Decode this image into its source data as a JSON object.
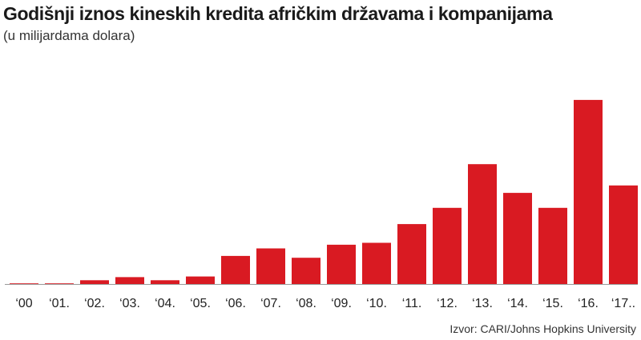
{
  "header": {
    "title": "Godišnji iznos kineskih kredita afričkim državama i kompanijama",
    "subtitle": "(u milijardama dolara)"
  },
  "footer": {
    "source": "Izvor: CARI/Johns Hopkins University"
  },
  "chart_data": {
    "type": "bar",
    "title": "Godišnji iznos kineskih kredita afričkim državama i kompanijama",
    "subtitle": "(u milijardama dolara)",
    "categories": [
      "‘00",
      "‘01.",
      "‘02.",
      "‘03.",
      "‘04.",
      "‘05.",
      "‘06.",
      "‘07.",
      "‘08.",
      "‘09.",
      "‘10.",
      "‘11.",
      "‘12.",
      "‘13.",
      "‘14.",
      "‘15.",
      "‘16.",
      "‘17.."
    ],
    "values": [
      0.1,
      0.1,
      0.6,
      1.1,
      0.6,
      1.2,
      4.5,
      5.7,
      4.2,
      6.3,
      6.6,
      9.6,
      12.2,
      19.2,
      14.6,
      12.2,
      29.5,
      15.8
    ],
    "ylim": [
      0,
      30
    ],
    "grid": false,
    "bar_color": "#d91a22",
    "xlabel": "",
    "ylabel": ""
  }
}
